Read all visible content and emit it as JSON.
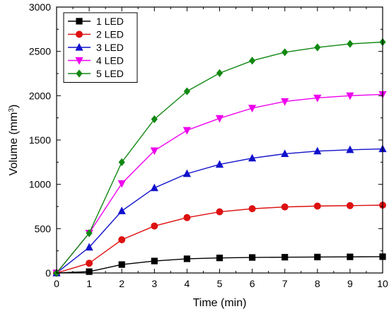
{
  "chart_data": {
    "type": "line",
    "xlabel": "Time (min)",
    "ylabel_main": "Volume (mm",
    "ylabel_sup": "3",
    "ylabel_close": ")",
    "xlim": [
      0,
      10
    ],
    "ylim": [
      0,
      3000
    ],
    "x_ticks": [
      0,
      1,
      2,
      3,
      4,
      5,
      6,
      7,
      8,
      9,
      10
    ],
    "x_tick_labels": [
      "0",
      "1",
      "2",
      "3",
      "4",
      "5",
      "6",
      "7",
      "8",
      "9",
      "10"
    ],
    "y_ticks": [
      0,
      500,
      1000,
      1500,
      2000,
      2500,
      3000
    ],
    "y_tick_labels": [
      "0",
      "500",
      "1000",
      "1500",
      "2000",
      "2500",
      "3000"
    ],
    "grid": false,
    "legend_position": "top-left",
    "x": [
      0,
      1,
      2,
      3,
      4,
      5,
      6,
      7,
      8,
      9,
      10
    ],
    "series": [
      {
        "name": "1 LED",
        "color": "#000000",
        "marker": "square",
        "values": [
          0,
          15,
          95,
          135,
          160,
          170,
          175,
          178,
          180,
          182,
          184
        ]
      },
      {
        "name": "2 LED",
        "color": "#dd1111",
        "marker": "circle",
        "values": [
          0,
          110,
          375,
          530,
          625,
          690,
          725,
          745,
          755,
          760,
          765
        ]
      },
      {
        "name": "3 LED",
        "color": "#1111cc",
        "marker": "triangle-up",
        "values": [
          0,
          290,
          700,
          960,
          1120,
          1225,
          1295,
          1345,
          1375,
          1390,
          1400
        ]
      },
      {
        "name": "4 LED",
        "color": "#ee00ee",
        "marker": "triangle-down",
        "values": [
          0,
          450,
          1010,
          1380,
          1610,
          1745,
          1860,
          1935,
          1975,
          2000,
          2015
        ]
      },
      {
        "name": "5 LED",
        "color": "#118811",
        "marker": "diamond",
        "values": [
          0,
          450,
          1250,
          1735,
          2050,
          2255,
          2395,
          2490,
          2545,
          2585,
          2605
        ]
      }
    ]
  }
}
